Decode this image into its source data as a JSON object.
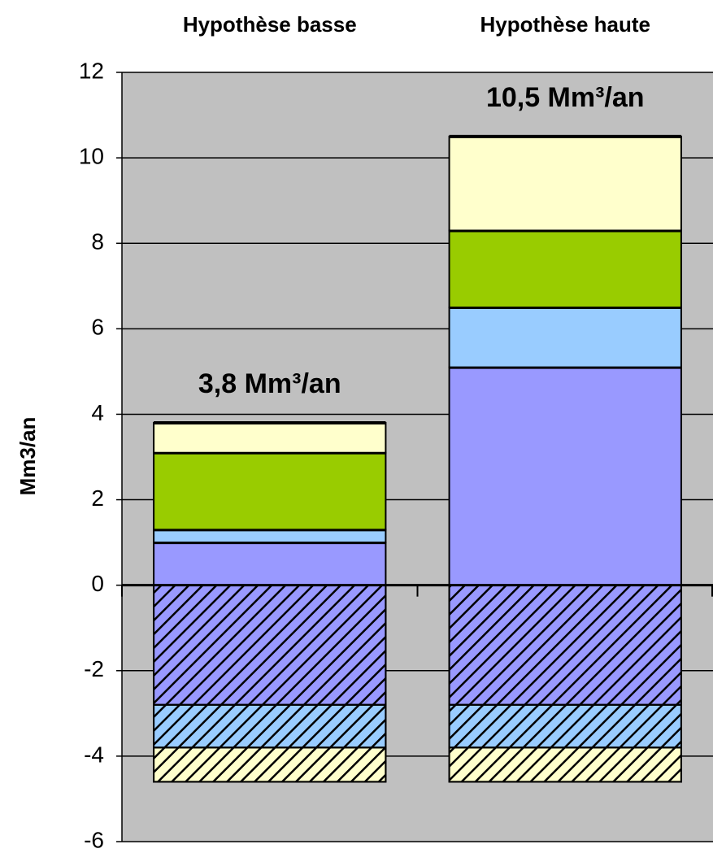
{
  "chart_data": {
    "type": "stacked_bar",
    "categories": [
      "Hypothèse basse",
      "Hypothèse haute"
    ],
    "y_label": "Mm3/an",
    "series": [
      {
        "color": "#9999ff",
        "pattern": "solid",
        "values": [
          1.0,
          5.1
        ]
      },
      {
        "color": "#99ccff",
        "pattern": "solid",
        "values": [
          0.3,
          1.4
        ]
      },
      {
        "color": "#99cc00",
        "pattern": "solid",
        "values": [
          1.8,
          1.8
        ]
      },
      {
        "color": "#ffffcc",
        "pattern": "solid",
        "values": [
          0.7,
          2.2
        ]
      },
      {
        "color": "#9999ff",
        "pattern": "hatch",
        "values": [
          -2.8,
          -2.8
        ]
      },
      {
        "color": "#99ccff",
        "pattern": "hatch",
        "values": [
          -1.0,
          -1.0
        ]
      },
      {
        "color": "#ffffcc",
        "pattern": "hatch",
        "values": [
          -0.8,
          -0.8
        ]
      }
    ],
    "totals": [
      3.8,
      10.5
    ],
    "total_labels": [
      "3,8 Mm³/an",
      "10,5 Mm³/an"
    ],
    "ylim": [
      -6,
      12
    ],
    "yticks": [
      -6,
      -4,
      -2,
      0,
      2,
      4,
      6,
      8,
      10,
      12
    ],
    "grid": true,
    "background": "#c0c0c0"
  }
}
